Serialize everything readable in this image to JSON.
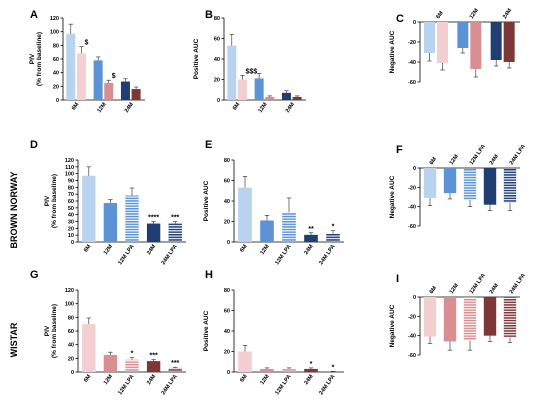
{
  "figure": {
    "row_labels": [
      "BROWN NORWAY",
      "WISTAR"
    ]
  },
  "chart_data": [
    {
      "panel": "A",
      "type": "bar",
      "ylabel": [
        "PIV",
        "(% from baseline)"
      ],
      "ylim": [
        0,
        120
      ],
      "ticks": [
        0,
        20,
        40,
        60,
        80,
        100,
        120
      ],
      "orientation": "up",
      "group_labels": [
        "6M",
        "12M",
        "24M"
      ],
      "series": [
        {
          "group": 0,
          "value": 97,
          "err": 14,
          "color": "#b9d3ef",
          "pattern": "solid"
        },
        {
          "group": 0,
          "value": 68,
          "err": 10,
          "color": "#f3cfd1",
          "pattern": "solid",
          "ann": "$"
        },
        {
          "group": 1,
          "value": 58,
          "err": 5,
          "color": "#5b93d4",
          "pattern": "solid"
        },
        {
          "group": 1,
          "value": 25,
          "err": 4,
          "color": "#d98f92",
          "pattern": "solid",
          "ann": "$"
        },
        {
          "group": 2,
          "value": 27,
          "err": 4,
          "color": "#1f3f72",
          "pattern": "solid"
        },
        {
          "group": 2,
          "value": 16,
          "err": 3,
          "color": "#7d3737",
          "pattern": "solid"
        }
      ]
    },
    {
      "panel": "B",
      "type": "bar",
      "ylabel": [
        "Positive AUC"
      ],
      "ylim": [
        0,
        80
      ],
      "ticks": [
        0,
        20,
        40,
        60,
        80
      ],
      "orientation": "up",
      "group_labels": [
        "6M",
        "12M",
        "24M"
      ],
      "series": [
        {
          "group": 0,
          "value": 53,
          "err": 11,
          "color": "#b9d3ef",
          "pattern": "solid"
        },
        {
          "group": 0,
          "value": 20,
          "err": 4,
          "color": "#f3cfd1",
          "pattern": "solid",
          "ann": "$$$"
        },
        {
          "group": 1,
          "value": 21,
          "err": 5,
          "color": "#5b93d4",
          "pattern": "solid"
        },
        {
          "group": 1,
          "value": 3,
          "err": 1,
          "color": "#d98f92",
          "pattern": "solid"
        },
        {
          "group": 2,
          "value": 7,
          "err": 2,
          "color": "#1f3f72",
          "pattern": "solid"
        },
        {
          "group": 2,
          "value": 3,
          "err": 1,
          "color": "#7d3737",
          "pattern": "solid"
        }
      ]
    },
    {
      "panel": "C",
      "type": "bar",
      "ylabel": [
        "Negative AUC"
      ],
      "ylim": [
        -60,
        0
      ],
      "ticks": [
        0,
        -20,
        -40,
        -60
      ],
      "orientation": "down",
      "group_labels": [
        "6M",
        "12M",
        "24M"
      ],
      "series": [
        {
          "group": 0,
          "value": -31,
          "err": 8,
          "color": "#b9d3ef",
          "pattern": "solid"
        },
        {
          "group": 0,
          "value": -41,
          "err": 7,
          "color": "#f3cfd1",
          "pattern": "solid"
        },
        {
          "group": 1,
          "value": -26,
          "err": 5,
          "color": "#5b93d4",
          "pattern": "solid"
        },
        {
          "group": 1,
          "value": -47,
          "err": 8,
          "color": "#d98f92",
          "pattern": "solid"
        },
        {
          "group": 2,
          "value": -38,
          "err": 6,
          "color": "#1f3f72",
          "pattern": "solid"
        },
        {
          "group": 2,
          "value": -40,
          "err": 6,
          "color": "#7d3737",
          "pattern": "solid"
        }
      ]
    },
    {
      "panel": "D",
      "type": "bar",
      "ylabel": [
        "PIV",
        "(% from baseline)"
      ],
      "ylim": [
        0,
        120
      ],
      "ticks": [
        0,
        10,
        20,
        30,
        40,
        50,
        60,
        70,
        80,
        90,
        100,
        110,
        120
      ],
      "orientation": "up",
      "categories": [
        "6M",
        "12M",
        "12M LPA",
        "24M",
        "24M LPA"
      ],
      "series": [
        {
          "value": 97,
          "err": 13,
          "color": "#b9d3ef",
          "pattern": "solid"
        },
        {
          "value": 57,
          "err": 5,
          "color": "#5b93d4",
          "pattern": "solid"
        },
        {
          "value": 68,
          "err": 11,
          "color": "#5b93d4",
          "pattern": "stripes"
        },
        {
          "value": 27,
          "err": 3,
          "color": "#1f3f72",
          "pattern": "solid",
          "ann": "****"
        },
        {
          "value": 27,
          "err": 3,
          "color": "#1f3f72",
          "pattern": "stripes",
          "ann": "***"
        }
      ]
    },
    {
      "panel": "E",
      "type": "bar",
      "ylabel": [
        "Positive AUC"
      ],
      "ylim": [
        0,
        80
      ],
      "ticks": [
        0,
        20,
        40,
        60,
        80
      ],
      "orientation": "up",
      "categories": [
        "6M",
        "12M",
        "12M LPA",
        "24M",
        "24M LPA"
      ],
      "series": [
        {
          "value": 53,
          "err": 11,
          "color": "#b9d3ef",
          "pattern": "solid"
        },
        {
          "value": 21,
          "err": 5,
          "color": "#5b93d4",
          "pattern": "solid"
        },
        {
          "value": 29,
          "err": 14,
          "color": "#5b93d4",
          "pattern": "stripes"
        },
        {
          "value": 7,
          "err": 2,
          "color": "#1f3f72",
          "pattern": "solid",
          "ann": "**"
        },
        {
          "value": 8,
          "err": 3,
          "color": "#1f3f72",
          "pattern": "stripes",
          "ann": "*"
        }
      ]
    },
    {
      "panel": "F",
      "type": "bar",
      "ylabel": [
        "Negative AUC"
      ],
      "ylim": [
        -60,
        0
      ],
      "ticks": [
        0,
        -20,
        -40,
        -60
      ],
      "orientation": "down",
      "categories": [
        "6M",
        "12M",
        "12M LPA",
        "24M",
        "24M LPA"
      ],
      "series": [
        {
          "value": -31,
          "err": 8,
          "color": "#b9d3ef",
          "pattern": "solid"
        },
        {
          "value": -26,
          "err": 6,
          "color": "#5b93d4",
          "pattern": "solid"
        },
        {
          "value": -33,
          "err": 7,
          "color": "#5b93d4",
          "pattern": "stripes"
        },
        {
          "value": -38,
          "err": 6,
          "color": "#1f3f72",
          "pattern": "solid"
        },
        {
          "value": -36,
          "err": 8,
          "color": "#1f3f72",
          "pattern": "stripes"
        }
      ]
    },
    {
      "panel": "G",
      "type": "bar",
      "ylabel": [
        "PIV",
        "(% from baseline)"
      ],
      "ylim": [
        0,
        120
      ],
      "ticks": [
        0,
        20,
        40,
        60,
        80,
        100,
        120
      ],
      "orientation": "up",
      "categories": [
        "6M",
        "12M",
        "12M LPA",
        "24M",
        "24M LPA"
      ],
      "series": [
        {
          "value": 70,
          "err": 9,
          "color": "#f3cfd1",
          "pattern": "solid"
        },
        {
          "value": 25,
          "err": 4,
          "color": "#d98f92",
          "pattern": "solid"
        },
        {
          "value": 18,
          "err": 3,
          "color": "#d98f92",
          "pattern": "stripes",
          "ann": "*"
        },
        {
          "value": 16,
          "err": 2,
          "color": "#7d3737",
          "pattern": "solid",
          "ann": "***"
        },
        {
          "value": 6,
          "err": 1,
          "color": "#7d3737",
          "pattern": "stripes",
          "ann": "***"
        }
      ]
    },
    {
      "panel": "H",
      "type": "bar",
      "ylabel": [
        "Positive AUC"
      ],
      "ylim": [
        0,
        80
      ],
      "ticks": [
        0,
        20,
        40,
        60,
        80
      ],
      "orientation": "up",
      "categories": [
        "6M",
        "12M",
        "12M LPA",
        "24M",
        "24M LPA"
      ],
      "series": [
        {
          "value": 20,
          "err": 6,
          "color": "#f3cfd1",
          "pattern": "solid"
        },
        {
          "value": 3,
          "err": 1,
          "color": "#d98f92",
          "pattern": "solid"
        },
        {
          "value": 3,
          "err": 1,
          "color": "#d98f92",
          "pattern": "stripes"
        },
        {
          "value": 3,
          "err": 1,
          "color": "#7d3737",
          "pattern": "solid",
          "ann": "*"
        },
        {
          "value": 0.4,
          "err": 0.2,
          "color": "#7d3737",
          "pattern": "stripes",
          "ann": "*"
        }
      ]
    },
    {
      "panel": "I",
      "type": "bar",
      "ylabel": [
        "Negative AUC"
      ],
      "ylim": [
        -60,
        0
      ],
      "ticks": [
        0,
        -20,
        -40,
        -60
      ],
      "orientation": "down",
      "categories": [
        "6M",
        "12M",
        "12M LPA",
        "24M",
        "24M LPA"
      ],
      "series": [
        {
          "value": -41,
          "err": 7,
          "color": "#f3cfd1",
          "pattern": "solid"
        },
        {
          "value": -46,
          "err": 9,
          "color": "#d98f92",
          "pattern": "solid"
        },
        {
          "value": -45,
          "err": 10,
          "color": "#d98f92",
          "pattern": "stripes"
        },
        {
          "value": -40,
          "err": 6,
          "color": "#7d3737",
          "pattern": "solid"
        },
        {
          "value": -42,
          "err": 5,
          "color": "#7d3737",
          "pattern": "stripes"
        }
      ]
    }
  ]
}
